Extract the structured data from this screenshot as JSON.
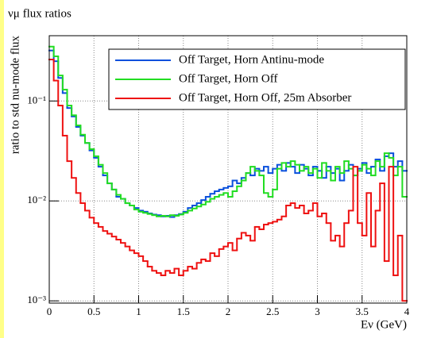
{
  "chart_data": {
    "type": "histogram",
    "title": "νμ flux ratios",
    "xlabel": "Eν (GeV)",
    "ylabel": "ratio to std nu-mode flux",
    "log_y": true,
    "grid": true,
    "legend": "upper right",
    "xlim": [
      0,
      4
    ],
    "xticks": [
      0,
      0.5,
      1,
      1.5,
      2,
      2.5,
      3,
      3.5,
      4
    ],
    "ylim": [
      0.00095,
      0.45
    ],
    "yticks": [
      {
        "value": 0.001,
        "label": "10⁻³"
      },
      {
        "value": 0.01,
        "label": "10⁻²"
      },
      {
        "value": 0.1,
        "label": "10⁻¹"
      }
    ],
    "bins": [
      0,
      0.05,
      0.1,
      0.15,
      0.2,
      0.25,
      0.3,
      0.35,
      0.4,
      0.45,
      0.5,
      0.55,
      0.6,
      0.65,
      0.7,
      0.75,
      0.8,
      0.85,
      0.9,
      0.95,
      1,
      1.05,
      1.1,
      1.15,
      1.2,
      1.25,
      1.3,
      1.35,
      1.4,
      1.45,
      1.5,
      1.55,
      1.6,
      1.65,
      1.7,
      1.75,
      1.8,
      1.85,
      1.9,
      1.95,
      2,
      2.05,
      2.1,
      2.15,
      2.2,
      2.25,
      2.3,
      2.35,
      2.4,
      2.45,
      2.5,
      2.55,
      2.6,
      2.65,
      2.7,
      2.75,
      2.8,
      2.85,
      2.9,
      2.95,
      3,
      3.05,
      3.1,
      3.15,
      3.2,
      3.25,
      3.3,
      3.35,
      3.4,
      3.45,
      3.5,
      3.55,
      3.6,
      3.65,
      3.7,
      3.75,
      3.8,
      3.85,
      3.9,
      3.95,
      4
    ],
    "series": [
      {
        "name": "Off Target, Horn Antinu-mode",
        "color": "#0a50dc",
        "values": [
          0.32,
          0.25,
          0.17,
          0.12,
          0.085,
          0.07,
          0.055,
          0.045,
          0.038,
          0.032,
          0.027,
          0.022,
          0.018,
          0.015,
          0.013,
          0.011,
          0.0105,
          0.0095,
          0.009,
          0.0085,
          0.008,
          0.0078,
          0.0075,
          0.0073,
          0.0072,
          0.007,
          0.0071,
          0.0069,
          0.0072,
          0.0074,
          0.0078,
          0.0085,
          0.009,
          0.0095,
          0.0102,
          0.011,
          0.0118,
          0.0125,
          0.013,
          0.0135,
          0.014,
          0.016,
          0.015,
          0.017,
          0.019,
          0.018,
          0.021,
          0.02,
          0.022,
          0.019,
          0.021,
          0.023,
          0.02,
          0.024,
          0.022,
          0.019,
          0.023,
          0.021,
          0.018,
          0.022,
          0.02,
          0.017,
          0.022,
          0.019,
          0.021,
          0.016,
          0.02,
          0.023,
          0.018,
          0.021,
          0.024,
          0.019,
          0.022,
          0.026,
          0.02,
          0.028,
          0.03,
          0.022,
          0.025,
          0.02
        ]
      },
      {
        "name": "Off Target, Horn Off",
        "color": "#22dd22",
        "values": [
          0.35,
          0.28,
          0.18,
          0.13,
          0.09,
          0.072,
          0.057,
          0.046,
          0.038,
          0.033,
          0.028,
          0.023,
          0.019,
          0.015,
          0.013,
          0.0115,
          0.0105,
          0.0095,
          0.009,
          0.0082,
          0.0078,
          0.0076,
          0.0074,
          0.0072,
          0.007,
          0.0071,
          0.007,
          0.0072,
          0.0071,
          0.0073,
          0.0076,
          0.008,
          0.0084,
          0.0088,
          0.0092,
          0.0098,
          0.0105,
          0.011,
          0.0115,
          0.012,
          0.011,
          0.0125,
          0.014,
          0.016,
          0.019,
          0.022,
          0.02,
          0.018,
          0.012,
          0.011,
          0.013,
          0.021,
          0.024,
          0.022,
          0.025,
          0.023,
          0.02,
          0.022,
          0.019,
          0.021,
          0.017,
          0.024,
          0.02,
          0.016,
          0.022,
          0.019,
          0.025,
          0.021,
          0.018,
          0.02,
          0.023,
          0.021,
          0.018,
          0.025,
          0.022,
          0.03,
          0.027,
          0.018,
          0.022,
          0.011
        ]
      },
      {
        "name": "Off Target, Horn Off, 25m Absorber",
        "color": "#ee1111",
        "values": [
          0.26,
          0.16,
          0.09,
          0.045,
          0.025,
          0.017,
          0.012,
          0.0095,
          0.008,
          0.0068,
          0.006,
          0.0055,
          0.005,
          0.0047,
          0.0044,
          0.0041,
          0.0038,
          0.0035,
          0.0032,
          0.003,
          0.0028,
          0.0025,
          0.0022,
          0.002,
          0.0019,
          0.0018,
          0.002,
          0.0019,
          0.0021,
          0.0018,
          0.002,
          0.0022,
          0.0021,
          0.0024,
          0.0026,
          0.0025,
          0.003,
          0.0028,
          0.0033,
          0.0035,
          0.0038,
          0.0032,
          0.0042,
          0.0048,
          0.0045,
          0.004,
          0.0055,
          0.0052,
          0.0058,
          0.006,
          0.0062,
          0.0065,
          0.007,
          0.009,
          0.0095,
          0.0085,
          0.009,
          0.0075,
          0.008,
          0.0095,
          0.007,
          0.0075,
          0.006,
          0.004,
          0.0045,
          0.0035,
          0.006,
          0.008,
          0.022,
          0.006,
          0.0045,
          0.012,
          0.0035,
          0.008,
          0.015,
          0.0025,
          0.022,
          0.0018,
          0.0045,
          0.001
        ]
      }
    ]
  }
}
